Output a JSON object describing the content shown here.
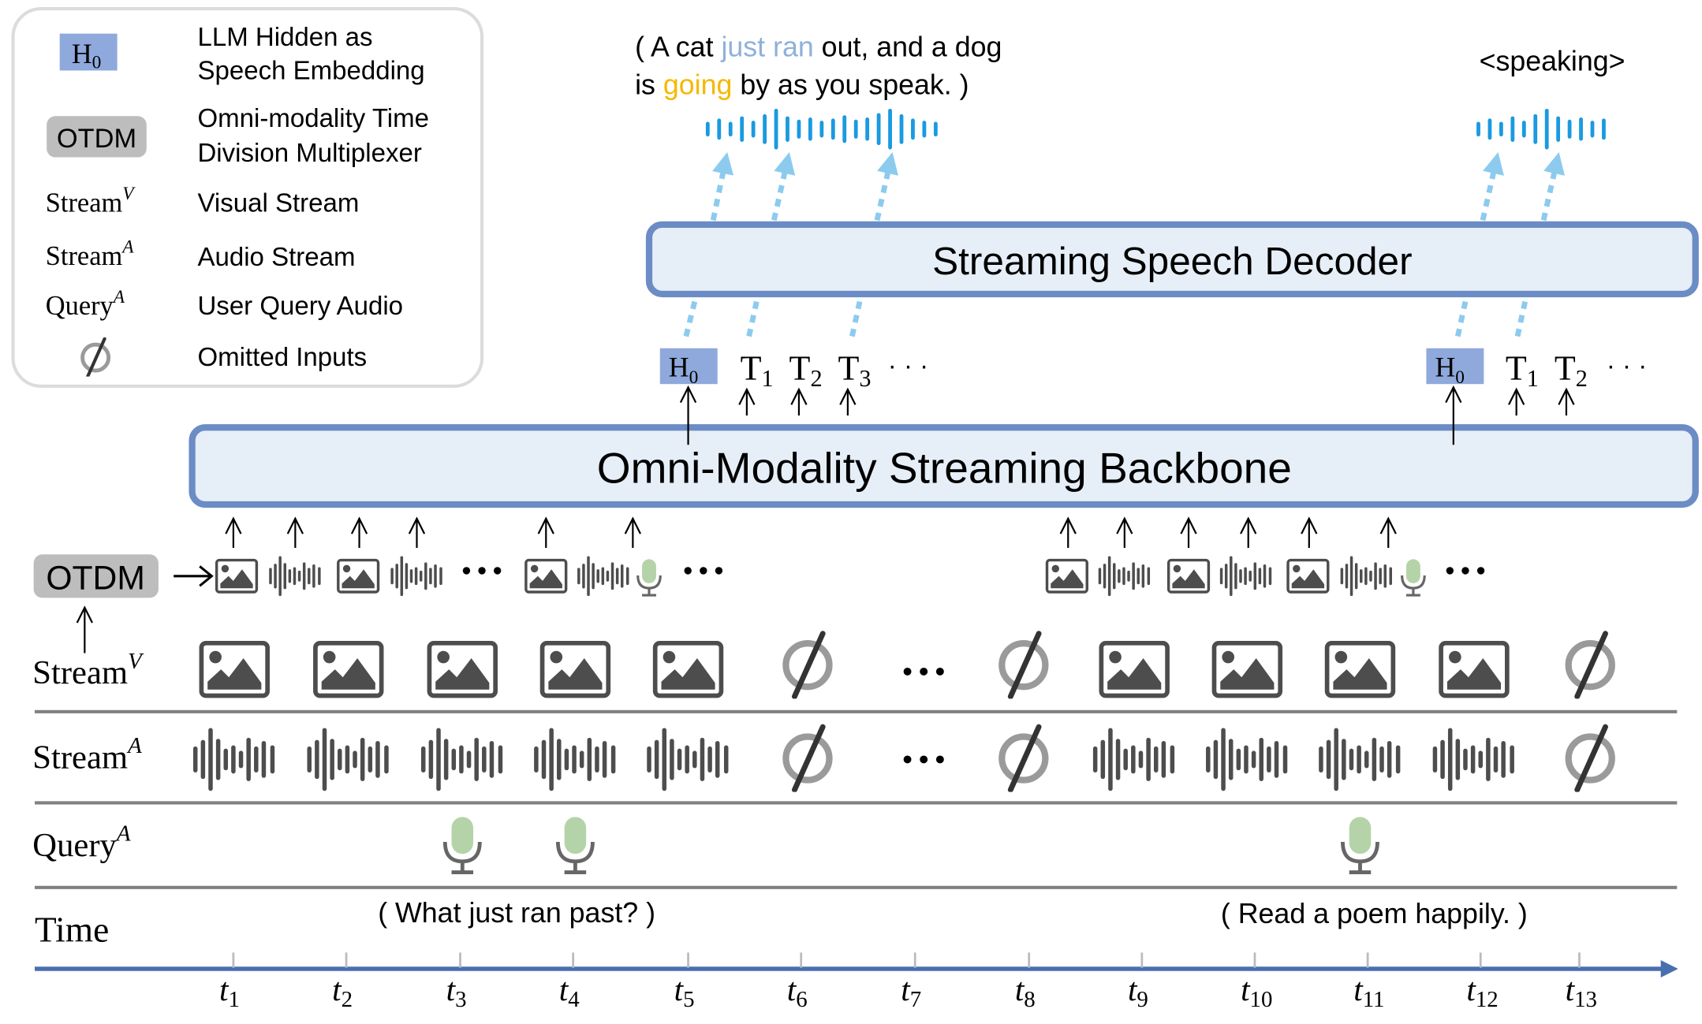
{
  "legend": {
    "items": [
      {
        "symbol": "H",
        "symbol_sub": "0",
        "lines": [
          "LLM Hidden as",
          "Speech Embedding"
        ]
      },
      {
        "symbol": "OTDM",
        "lines": [
          "Omni-modality Time",
          "Division Multiplexer"
        ]
      },
      {
        "symbol": "Stream",
        "symbol_sup": "V",
        "lines": [
          "Visual Stream"
        ]
      },
      {
        "symbol": "Stream",
        "symbol_sup": "A",
        "lines": [
          "Audio Stream"
        ]
      },
      {
        "symbol": "Query",
        "symbol_sup": "A",
        "lines": [
          "User Query Audio"
        ]
      },
      {
        "symbol_icon": "omitted-icon",
        "lines": [
          "Omitted Inputs"
        ]
      }
    ]
  },
  "output_text": {
    "line1_parts": [
      "( A cat ",
      "just ran",
      " out, and a dog"
    ],
    "line2_parts": [
      "is ",
      "going",
      " by as you speak. )"
    ],
    "speaking": "<speaking>"
  },
  "colors": {
    "highlight_blue": "#8fb0dc",
    "highlight_yellow": "#f5b800",
    "h0_fill": "#8fa9dc",
    "box_fill": "#e6eef7",
    "box_border": "#6b8cc4",
    "waveform_blue": "#1a9ae0",
    "dotted_arrow": "#8ccbee",
    "time_axis": "#4a6fb0",
    "mic_green": "#b5d3a8"
  },
  "decoder": {
    "label": "Streaming Speech Decoder"
  },
  "backbone": {
    "label": "Omni-Modality Streaming Backbone"
  },
  "tokens_left": [
    {
      "base": "H",
      "sub": "0",
      "boxed": true
    },
    {
      "base": "T",
      "sub": "1"
    },
    {
      "base": "T",
      "sub": "2"
    },
    {
      "base": "T",
      "sub": "3"
    }
  ],
  "tokens_right": [
    {
      "base": "H",
      "sub": "0",
      "boxed": true
    },
    {
      "base": "T",
      "sub": "1"
    },
    {
      "base": "T",
      "sub": "2"
    }
  ],
  "ellipsis": "· · ·",
  "otdm": {
    "label": "OTDM"
  },
  "otdm_sequence_left": [
    "image",
    "wave",
    "image",
    "wave",
    "dots",
    "image",
    "wave",
    "mic",
    "dots"
  ],
  "otdm_sequence_right": [
    "image",
    "wave",
    "image",
    "wave",
    "image",
    "wave",
    "mic",
    "dots"
  ],
  "rows": {
    "stream_v": {
      "label": "Stream",
      "sup": "V"
    },
    "stream_a": {
      "label": "Stream",
      "sup": "A"
    },
    "query_a": {
      "label": "Query",
      "sup": "A"
    },
    "time": {
      "label": "Time"
    }
  },
  "stream_v_cells": [
    "image",
    "image",
    "image",
    "image",
    "image",
    "omitted",
    "dots",
    "omitted",
    "image",
    "image",
    "image",
    "image",
    "omitted"
  ],
  "stream_a_cells": [
    "wave",
    "wave",
    "wave",
    "wave",
    "wave",
    "omitted",
    "dots",
    "omitted",
    "wave",
    "wave",
    "wave",
    "wave",
    "omitted"
  ],
  "query_cells": [
    "",
    "",
    "mic",
    "mic",
    "",
    "",
    "",
    "",
    "",
    "",
    "mic",
    "",
    ""
  ],
  "queries": [
    "( What just ran past? )",
    "( Read a poem happily. )"
  ],
  "time_ticks": [
    {
      "t": "t",
      "n": "1"
    },
    {
      "t": "t",
      "n": "2"
    },
    {
      "t": "t",
      "n": "3"
    },
    {
      "t": "t",
      "n": "4"
    },
    {
      "t": "t",
      "n": "5"
    },
    {
      "t": "t",
      "n": "6"
    },
    {
      "t": "t",
      "n": "7"
    },
    {
      "t": "t",
      "n": "8"
    },
    {
      "t": "t",
      "n": "9"
    },
    {
      "t": "t",
      "n": "10"
    },
    {
      "t": "t",
      "n": "11"
    },
    {
      "t": "t",
      "n": "12"
    },
    {
      "t": "t",
      "n": "13"
    }
  ]
}
